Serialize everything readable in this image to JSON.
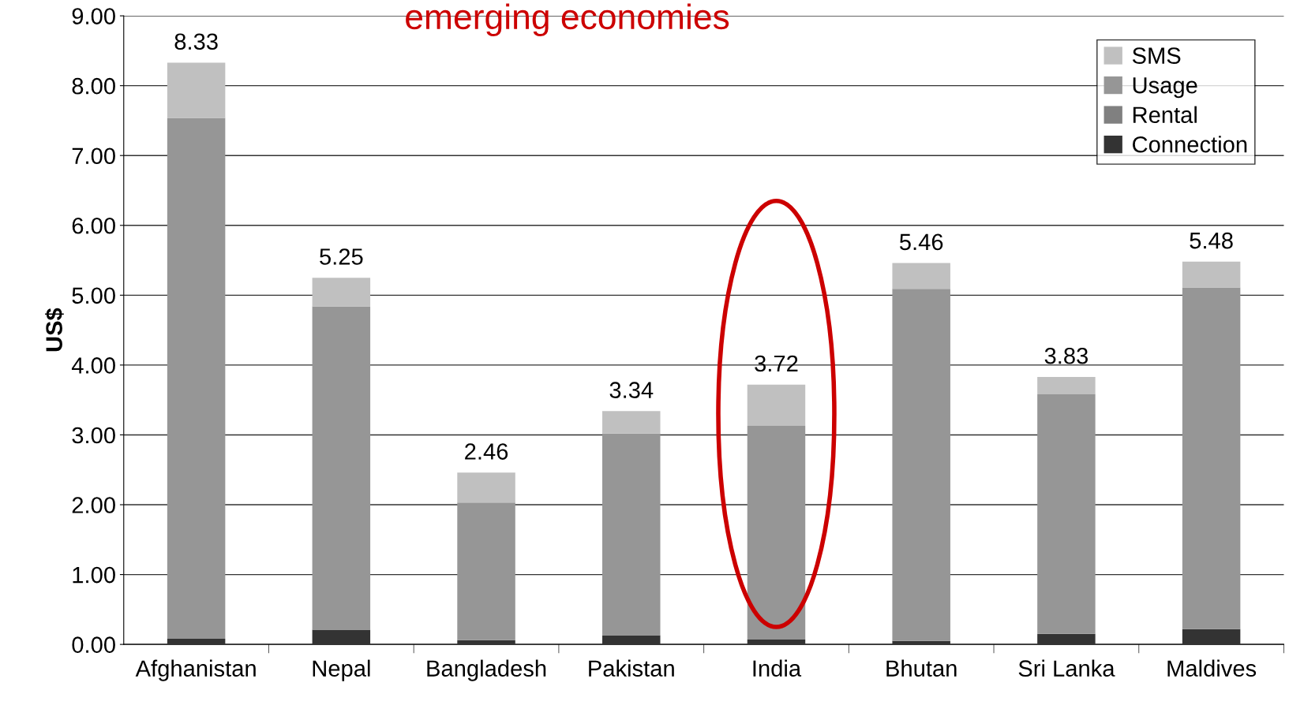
{
  "chart_data": {
    "type": "bar",
    "title": "emerging economies",
    "ylabel": "US$",
    "stacked": true,
    "grid": "y",
    "legend": "top right",
    "categories": [
      "Afghanistan",
      "Nepal",
      "Bangladesh",
      "Pakistan",
      "India",
      "Bhutan",
      "Sri Lanka",
      "Maldives"
    ],
    "series": [
      {
        "name": "Connection",
        "color": "#333333",
        "values": [
          0.08,
          0.21,
          0.06,
          0.13,
          0.07,
          0.05,
          0.15,
          0.22
        ]
      },
      {
        "name": "Rental",
        "color": "#808080",
        "values": [
          0,
          0,
          0,
          0,
          0,
          0,
          0,
          0
        ]
      },
      {
        "name": "Usage",
        "color": "#969696",
        "values": [
          7.46,
          4.63,
          1.97,
          2.89,
          3.06,
          5.04,
          3.43,
          4.89
        ]
      },
      {
        "name": "SMS",
        "color": "#c0c0c0",
        "values": [
          0.79,
          0.41,
          0.43,
          0.32,
          0.59,
          0.37,
          0.25,
          0.37
        ]
      }
    ],
    "totals": [
      "8.33",
      "5.25",
      "2.46",
      "3.34",
      "3.72",
      "5.46",
      "3.83",
      "5.48"
    ],
    "ylim": [
      0,
      9
    ],
    "yticks": [
      {
        "value": 0,
        "label": "0.00"
      },
      {
        "value": 1,
        "label": "1.00"
      },
      {
        "value": 2,
        "label": "2.00"
      },
      {
        "value": 3,
        "label": "3.00"
      },
      {
        "value": 4,
        "label": "4.00"
      },
      {
        "value": 5,
        "label": "5.00"
      },
      {
        "value": 6,
        "label": "6.00"
      },
      {
        "value": 7,
        "label": "7.00"
      },
      {
        "value": 8,
        "label": "8.00"
      },
      {
        "value": 9,
        "label": "9.00"
      }
    ]
  }
}
